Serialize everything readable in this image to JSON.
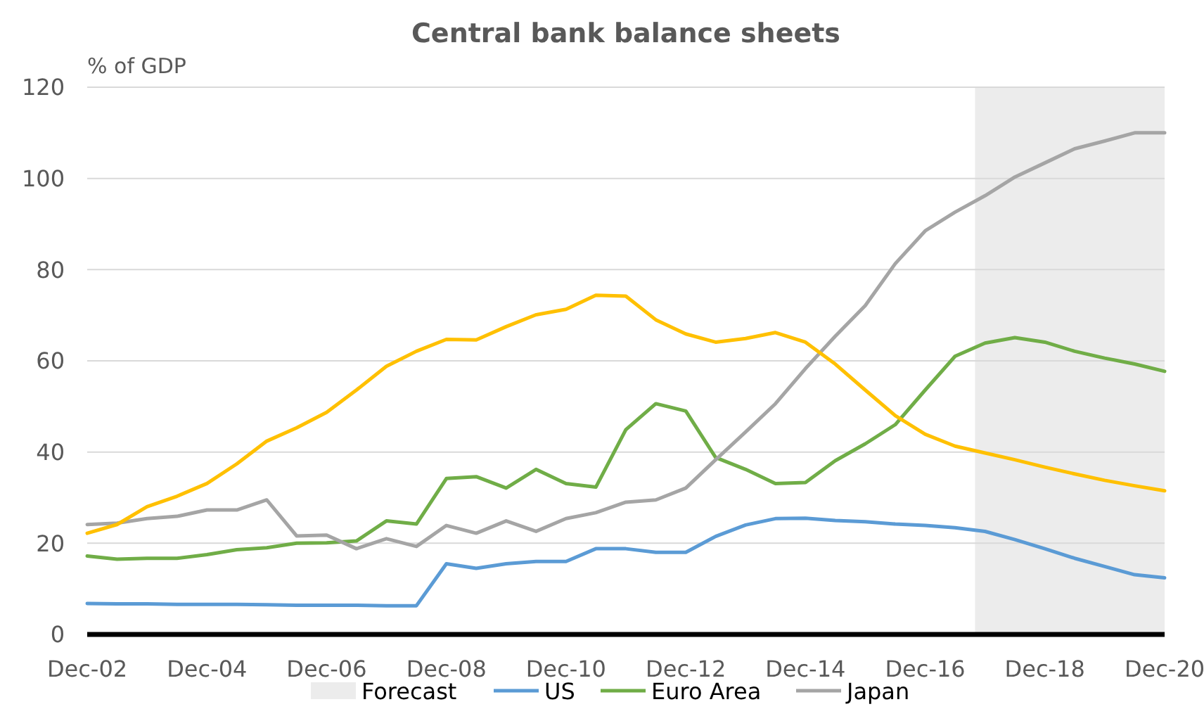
{
  "chart_data": {
    "type": "line",
    "title": "Central bank balance sheets",
    "ylabel": "% of GDP",
    "x": [
      "2002-12",
      "2003-06",
      "2003-12",
      "2004-06",
      "2004-12",
      "2005-06",
      "2005-12",
      "2006-06",
      "2006-12",
      "2007-06",
      "2007-12",
      "2008-06",
      "2008-12",
      "2009-06",
      "2009-12",
      "2010-06",
      "2010-12",
      "2011-06",
      "2011-12",
      "2012-06",
      "2012-12",
      "2013-06",
      "2013-12",
      "2014-06",
      "2014-12",
      "2015-06",
      "2015-12",
      "2016-06",
      "2016-12",
      "2017-06",
      "2017-12",
      "2018-06",
      "2018-12",
      "2019-06",
      "2019-12",
      "2020-06",
      "2020-12"
    ],
    "series": [
      {
        "name": "US",
        "color": "#5b9bd5",
        "values": [
          6.8,
          6.7,
          6.7,
          6.6,
          6.6,
          6.6,
          6.5,
          6.4,
          6.4,
          6.4,
          6.3,
          6.3,
          15.5,
          14.5,
          15.5,
          16,
          16,
          18.8,
          18.8,
          18,
          18,
          21.5,
          24,
          25.4,
          25.5,
          25,
          24.7,
          24.2,
          23.9,
          23.4,
          22.6,
          20.8,
          18.8,
          16.7,
          14.9,
          13.1,
          12.4
        ]
      },
      {
        "name": "Euro Area",
        "color": "#70ad47",
        "values": [
          17.2,
          16.5,
          16.7,
          16.7,
          17.5,
          18.6,
          19,
          20,
          20.1,
          20.5,
          24.9,
          24.2,
          34.2,
          34.6,
          32.1,
          36.2,
          33.1,
          32.3,
          44.9,
          50.6,
          49,
          38.8,
          36.2,
          33.1,
          33.3,
          38.1,
          41.8,
          46,
          53.6,
          61,
          63.9,
          65.1,
          64.1,
          62.1,
          60.6,
          59.3,
          57.7
        ]
      },
      {
        "name": "Japan",
        "color": "#a5a5a5",
        "values": [
          24.1,
          24.4,
          25.4,
          25.9,
          27.3,
          27.3,
          29.5,
          21.6,
          21.8,
          18.8,
          21,
          19.3,
          23.9,
          22.2,
          24.9,
          22.6,
          25.4,
          26.7,
          29,
          29.5,
          32.1,
          38.3,
          44.4,
          50.6,
          58.3,
          65.4,
          72.1,
          81.3,
          88.5,
          92.6,
          96.2,
          100.3,
          103.4,
          106.5,
          108.2,
          110,
          110
        ]
      },
      {
        "color": "#ffc000",
        "values": [
          22.2,
          24.1,
          28,
          30.3,
          33.1,
          37.4,
          42.4,
          45.3,
          48.7,
          53.6,
          58.8,
          62.1,
          64.7,
          64.6,
          67.5,
          70.1,
          71.3,
          74.4,
          74.2,
          69,
          65.9,
          64.1,
          64.9,
          66.2,
          64.1,
          59.3,
          53.6,
          48,
          43.9,
          41.3,
          39.8,
          38.3,
          36.7,
          35.2,
          33.8,
          32.6,
          31.5
        ]
      }
    ],
    "xlim": [
      "2002-12",
      "2020-12"
    ],
    "xticks": [
      {
        "value": "2002-12",
        "label": "Dec-02"
      },
      {
        "value": "2004-12",
        "label": "Dec-04"
      },
      {
        "value": "2006-12",
        "label": "Dec-06"
      },
      {
        "value": "2008-12",
        "label": "Dec-08"
      },
      {
        "value": "2010-12",
        "label": "Dec-10"
      },
      {
        "value": "2012-12",
        "label": "Dec-12"
      },
      {
        "value": "2014-12",
        "label": "Dec-14"
      },
      {
        "value": "2016-12",
        "label": "Dec-16"
      },
      {
        "value": "2018-12",
        "label": "Dec-18"
      },
      {
        "value": "2020-12",
        "label": "Dec-20"
      }
    ],
    "ylim": [
      0,
      120
    ],
    "yticks": [
      0,
      20,
      40,
      60,
      80,
      100,
      120
    ],
    "bands": [
      {
        "axis": "x",
        "from": "2017-10",
        "to": "2020-12",
        "label": "Forecast",
        "color": "#ececec"
      }
    ],
    "grid": "y",
    "legend": "bottom",
    "marker": "none",
    "line_style": "solid"
  }
}
